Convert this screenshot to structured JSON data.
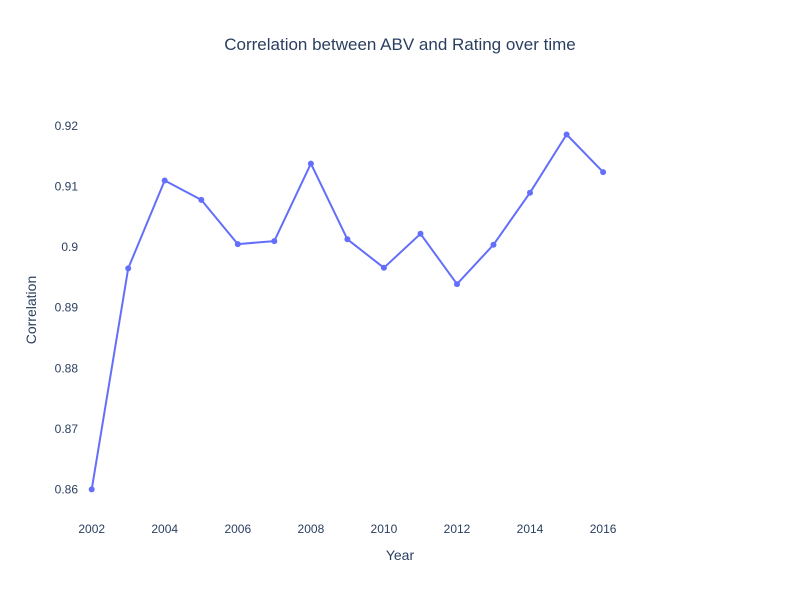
{
  "chart_data": {
    "type": "line",
    "title": "Correlation between ABV and Rating over time",
    "xlabel": "Year",
    "ylabel": "Correlation",
    "x": [
      2002,
      2003,
      2004,
      2005,
      2006,
      2007,
      2008,
      2009,
      2010,
      2011,
      2012,
      2013,
      2014,
      2015,
      2016
    ],
    "series": [
      {
        "values": [
          0.86,
          0.8965,
          0.911,
          0.9078,
          0.9005,
          0.901,
          0.9138,
          0.9013,
          0.8966,
          0.9022,
          0.8939,
          0.9004,
          0.909,
          0.9186,
          0.9124
        ],
        "color": "#636efa"
      }
    ],
    "xticks": [
      "2002",
      "2004",
      "2006",
      "2008",
      "2010",
      "2012",
      "2014",
      "2016"
    ],
    "yticks": [
      "0.86",
      "0.87",
      "0.88",
      "0.89",
      "0.9",
      "0.91",
      "0.92"
    ],
    "xlim": [
      2001.68,
      2019.2
    ],
    "ylim": [
      0.8566,
      0.9243
    ],
    "grid": false,
    "legend": "none"
  }
}
